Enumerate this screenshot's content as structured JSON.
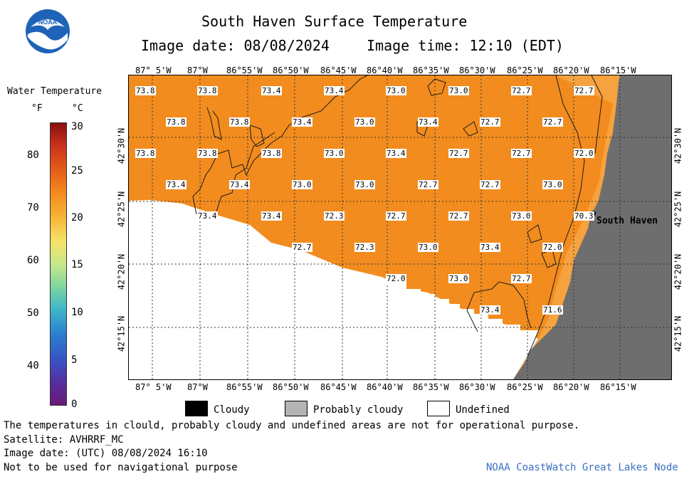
{
  "header": {
    "title": "South Haven Surface Temperature",
    "date_line": "Image date: 08/08/2024",
    "time_line": "Image time: 12:10 (EDT)",
    "logo_text": "NOAA"
  },
  "colorbar": {
    "title": "Water Temperature",
    "unit_f": "°F",
    "unit_c": "°C",
    "f_ticks": [
      "80",
      "70",
      "60",
      "50",
      "40"
    ],
    "c_ticks": [
      "30",
      "25",
      "20",
      "15",
      "10",
      "5",
      "0"
    ]
  },
  "map": {
    "lon_labels": [
      "87° 5'W",
      "87°W",
      "86°55'W",
      "86°50'W",
      "86°45'W",
      "86°40'W",
      "86°35'W",
      "86°30'W",
      "86°25'W",
      "86°20'W",
      "86°15'W"
    ],
    "lat_labels": [
      "42°30'N",
      "42°25'N",
      "42°20'N",
      "42°15'N"
    ],
    "city": "South Haven",
    "temps": [
      "73.8",
      "73.8",
      "73.4",
      "73.4",
      "73.0",
      "73.0",
      "72.7",
      "72.7",
      "73.8",
      "73.8",
      "73.4",
      "73.0",
      "73.4",
      "72.7",
      "72.7",
      "73.8",
      "73.8",
      "73.8",
      "73.0",
      "73.4",
      "72.7",
      "72.7",
      "72.0",
      "73.4",
      "73.4",
      "73.0",
      "73.0",
      "72.7",
      "72.7",
      "73.0",
      "73.4",
      "73.4",
      "72.3",
      "72.7",
      "72.7",
      "73.0",
      "70.3",
      "72.7",
      "72.3",
      "73.0",
      "73.4",
      "72.0",
      "72.0",
      "73.0",
      "72.7",
      "73.4",
      "71.6"
    ]
  },
  "legend": {
    "cloudy": "Cloudy",
    "probably_cloudy": "Probably cloudy",
    "undefined": "Undefined"
  },
  "footer": {
    "line1": "The temperatures in clould, probably cloudy and undefined areas are not for operational purpose.",
    "line2": "Satellite: AVHRRF_MC",
    "line3": "Image date: (UTC) 08/08/2024  16:10",
    "line4": "Not to be used for navigational purpose",
    "credit": "NOAA CoastWatch Great Lakes Node"
  },
  "colors": {
    "water": "#f28c1e",
    "water_light": "#f6a03a",
    "land": "#6e6e6e",
    "credit": "#3a6fc4"
  }
}
